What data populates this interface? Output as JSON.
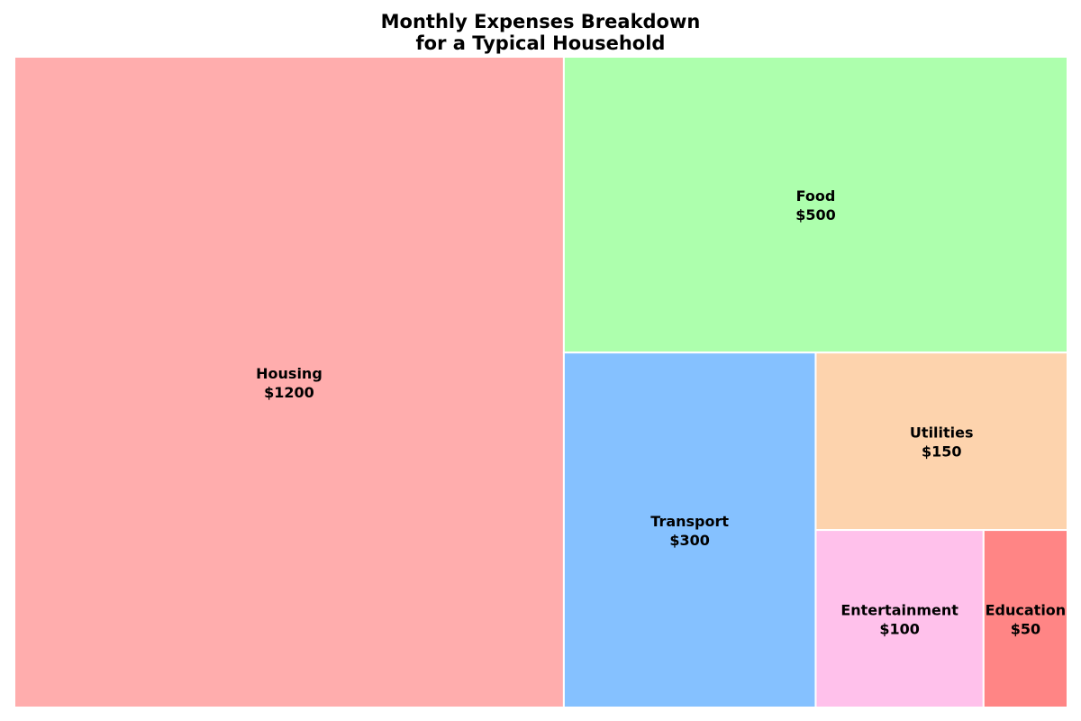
{
  "title_lines": [
    "Monthly Expenses Breakdown",
    "for a Typical Household"
  ],
  "chart_data": {
    "type": "treemap",
    "title": "Monthly Expenses Breakdown for a Typical Household",
    "value_prefix": "$",
    "items": [
      {
        "label": "Housing",
        "value": 1200,
        "color": "#ffadad"
      },
      {
        "label": "Food",
        "value": 500,
        "color": "#adffad"
      },
      {
        "label": "Transport",
        "value": 300,
        "color": "#85c1ff"
      },
      {
        "label": "Utilities",
        "value": 150,
        "color": "#fdd3ad"
      },
      {
        "label": "Entertainment",
        "value": 100,
        "color": "#ffc1eb"
      },
      {
        "label": "Education",
        "value": 50,
        "color": "#ff8585"
      }
    ],
    "border_color": "#ffffff"
  }
}
